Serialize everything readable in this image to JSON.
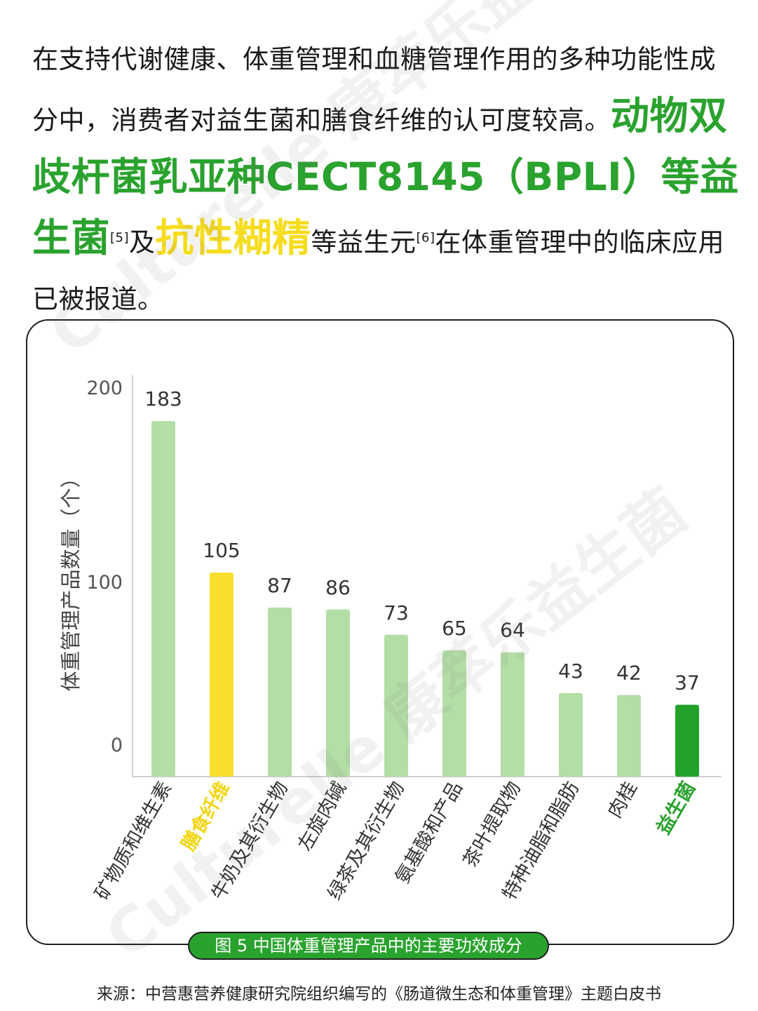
{
  "intro": {
    "p1": "在支持代谢健康、体重管理和血糖管理作用的多种功能性成分中，消费者对益生菌和膳食纤维的认可度较高。",
    "hl1": "动物双歧杆菌乳亚种CECT8145（BPLI）等益生菌",
    "cite1": "[5]",
    "p2": "及",
    "hl2": "抗性糊精",
    "p3": "等益生元",
    "cite2": "[6]",
    "p4": "在体重管理中的临床应用已被报道。"
  },
  "watermark": "Culturelle 康萃乐益生菌",
  "chart_data": {
    "type": "bar",
    "ylabel": "体重管理产品数量（个）",
    "ylim": [
      0,
      200
    ],
    "yticks": [
      "200",
      "100",
      "0"
    ],
    "categories": [
      "矿物质和维生素",
      "膳食纤维",
      "牛奶及其衍生物",
      "左旋肉碱",
      "绿茶及其衍生物",
      "氨基酸和产品",
      "茶叶提取物",
      "特种油脂和脂肪",
      "肉桂",
      "益生菌"
    ],
    "values": [
      183,
      105,
      87,
      86,
      73,
      65,
      64,
      43,
      42,
      37
    ],
    "colors": [
      "#b3dea6",
      "#f8df2c",
      "#b3dea6",
      "#b3dea6",
      "#b3dea6",
      "#b3dea6",
      "#b3dea6",
      "#b3dea6",
      "#b3dea6",
      "#22a12b"
    ],
    "label_colors": [
      "#333333",
      "#f2d511",
      "#333333",
      "#333333",
      "#333333",
      "#333333",
      "#333333",
      "#333333",
      "#333333",
      "#2aa22e"
    ],
    "label_bold": [
      false,
      true,
      false,
      false,
      false,
      false,
      false,
      false,
      false,
      true
    ]
  },
  "caption": "图 5  中国体重管理产品中的主要功效成分",
  "source": "来源：中营惠营养健康研究院组织编写的《肠道微生态和体重管理》主题白皮书"
}
